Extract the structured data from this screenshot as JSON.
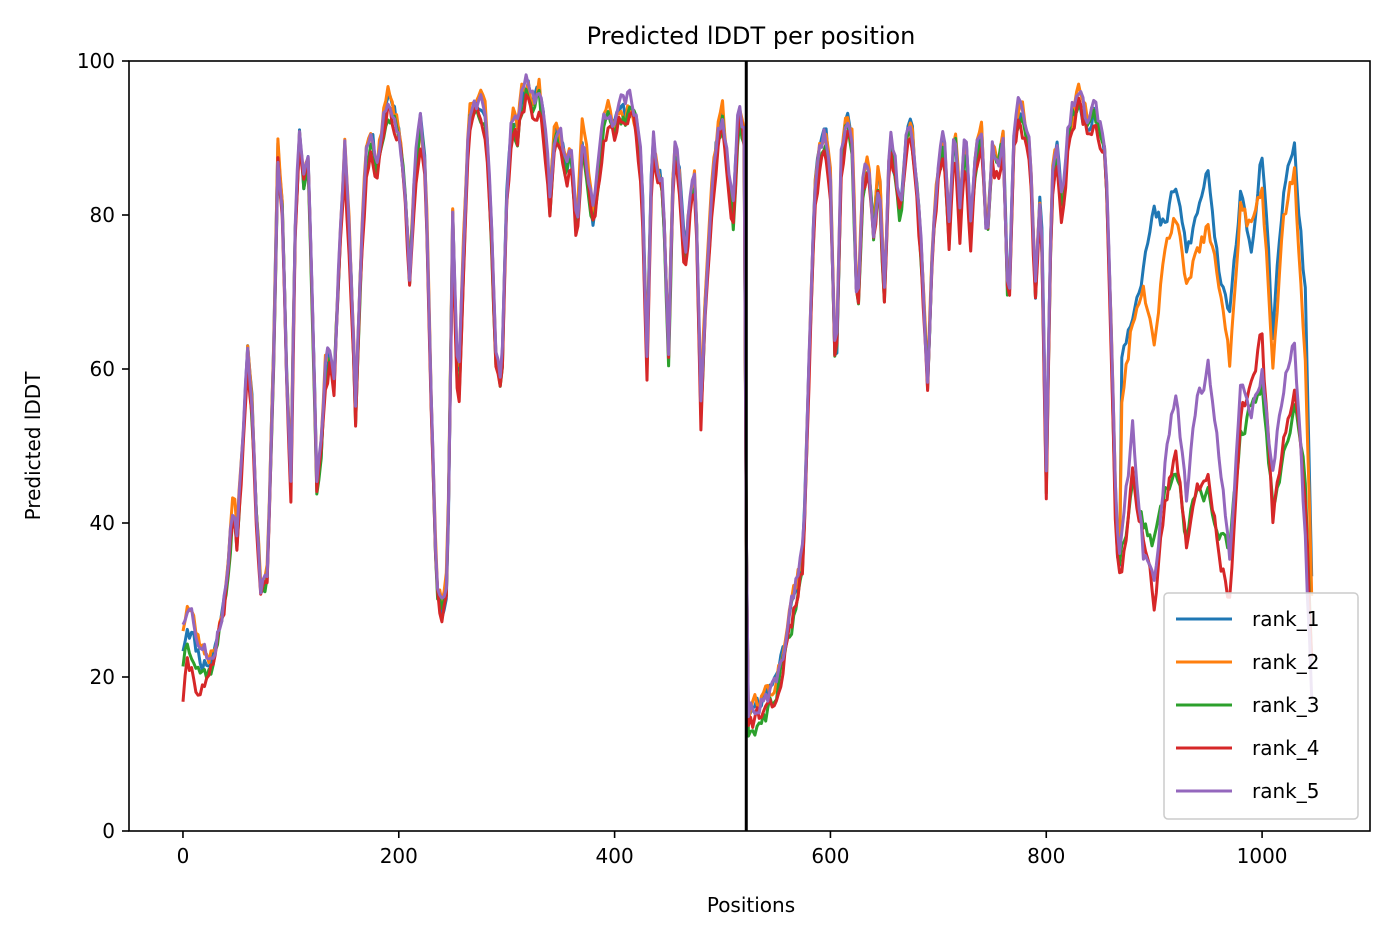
{
  "chart_data": {
    "type": "line",
    "title": "Predicted lDDT per position",
    "xlabel": "Positions",
    "ylabel": "Predicted lDDT",
    "xlim": [
      -50,
      1100
    ],
    "ylim": [
      0,
      100
    ],
    "xticks": [
      0,
      200,
      400,
      600,
      800,
      1000
    ],
    "yticks": [
      0,
      20,
      40,
      60,
      80,
      100
    ],
    "vline": 522,
    "grid": false,
    "legend_position": "lower-right",
    "colors": {
      "rank_1": "#1f77b4",
      "rank_2": "#ff7f0e",
      "rank_3": "#2ca02c",
      "rank_4": "#d62728",
      "rank_5": "#9467bd",
      "vline": "#000000"
    },
    "base": [
      [
        0,
        24
      ],
      [
        4,
        27
      ],
      [
        8,
        26
      ],
      [
        12,
        24
      ],
      [
        18,
        22
      ],
      [
        25,
        22
      ],
      [
        30,
        24
      ],
      [
        36,
        28
      ],
      [
        42,
        35
      ],
      [
        47,
        43
      ],
      [
        50,
        38
      ],
      [
        55,
        50
      ],
      [
        60,
        62
      ],
      [
        64,
        55
      ],
      [
        68,
        42
      ],
      [
        72,
        32
      ],
      [
        78,
        33
      ],
      [
        84,
        62
      ],
      [
        88,
        88
      ],
      [
        92,
        82
      ],
      [
        96,
        60
      ],
      [
        100,
        46
      ],
      [
        104,
        78
      ],
      [
        108,
        91
      ],
      [
        112,
        85
      ],
      [
        116,
        88
      ],
      [
        120,
        68
      ],
      [
        124,
        46
      ],
      [
        128,
        50
      ],
      [
        132,
        60
      ],
      [
        136,
        62
      ],
      [
        140,
        58
      ],
      [
        145,
        75
      ],
      [
        150,
        88
      ],
      [
        155,
        75
      ],
      [
        160,
        55
      ],
      [
        165,
        75
      ],
      [
        170,
        88
      ],
      [
        175,
        90
      ],
      [
        180,
        86
      ],
      [
        185,
        92
      ],
      [
        190,
        95
      ],
      [
        195,
        93
      ],
      [
        200,
        91
      ],
      [
        205,
        85
      ],
      [
        210,
        72
      ],
      [
        215,
        86
      ],
      [
        220,
        92
      ],
      [
        225,
        86
      ],
      [
        230,
        55
      ],
      [
        235,
        32
      ],
      [
        240,
        29
      ],
      [
        245,
        33
      ],
      [
        250,
        80
      ],
      [
        255,
        55
      ],
      [
        260,
        75
      ],
      [
        265,
        92
      ],
      [
        270,
        94
      ],
      [
        275,
        95
      ],
      [
        280,
        93
      ],
      [
        285,
        82
      ],
      [
        290,
        62
      ],
      [
        295,
        57
      ],
      [
        300,
        82
      ],
      [
        305,
        93
      ],
      [
        310,
        91
      ],
      [
        315,
        96
      ],
      [
        320,
        97
      ],
      [
        325,
        94
      ],
      [
        330,
        96
      ],
      [
        335,
        91
      ],
      [
        340,
        82
      ],
      [
        345,
        92
      ],
      [
        350,
        90
      ],
      [
        355,
        86
      ],
      [
        360,
        88
      ],
      [
        365,
        78
      ],
      [
        370,
        90
      ],
      [
        375,
        86
      ],
      [
        380,
        80
      ],
      [
        385,
        85
      ],
      [
        390,
        92
      ],
      [
        395,
        94
      ],
      [
        400,
        91
      ],
      [
        405,
        94
      ],
      [
        410,
        93
      ],
      [
        415,
        95
      ],
      [
        420,
        92
      ],
      [
        425,
        86
      ],
      [
        430,
        62
      ],
      [
        435,
        90
      ],
      [
        440,
        86
      ],
      [
        445,
        83
      ],
      [
        450,
        62
      ],
      [
        455,
        90
      ],
      [
        460,
        85
      ],
      [
        465,
        74
      ],
      [
        470,
        82
      ],
      [
        475,
        85
      ],
      [
        480,
        55
      ],
      [
        485,
        72
      ],
      [
        490,
        82
      ],
      [
        495,
        90
      ],
      [
        500,
        93
      ],
      [
        505,
        86
      ],
      [
        510,
        80
      ],
      [
        515,
        94
      ],
      [
        520,
        90
      ],
      [
        523,
        14
      ],
      [
        530,
        15
      ],
      [
        540,
        16
      ],
      [
        550,
        18
      ],
      [
        560,
        25
      ],
      [
        570,
        32
      ],
      [
        575,
        35
      ],
      [
        580,
        60
      ],
      [
        585,
        82
      ],
      [
        590,
        88
      ],
      [
        595,
        91
      ],
      [
        600,
        85
      ],
      [
        605,
        58
      ],
      [
        610,
        87
      ],
      [
        615,
        92
      ],
      [
        620,
        90
      ],
      [
        625,
        66
      ],
      [
        630,
        84
      ],
      [
        635,
        87
      ],
      [
        640,
        78
      ],
      [
        645,
        86
      ],
      [
        650,
        70
      ],
      [
        655,
        90
      ],
      [
        660,
        86
      ],
      [
        665,
        80
      ],
      [
        670,
        90
      ],
      [
        675,
        92
      ],
      [
        680,
        84
      ],
      [
        685,
        74
      ],
      [
        690,
        58
      ],
      [
        695,
        78
      ],
      [
        700,
        86
      ],
      [
        705,
        90
      ],
      [
        710,
        78
      ],
      [
        715,
        92
      ],
      [
        720,
        80
      ],
      [
        725,
        90
      ],
      [
        730,
        78
      ],
      [
        735,
        88
      ],
      [
        740,
        91
      ],
      [
        745,
        76
      ],
      [
        750,
        88
      ],
      [
        755,
        86
      ],
      [
        760,
        90
      ],
      [
        765,
        66
      ],
      [
        770,
        90
      ],
      [
        775,
        94
      ],
      [
        780,
        92
      ],
      [
        785,
        88
      ],
      [
        790,
        70
      ],
      [
        795,
        85
      ],
      [
        800,
        46
      ],
      [
        805,
        84
      ],
      [
        810,
        88
      ],
      [
        815,
        80
      ],
      [
        820,
        90
      ],
      [
        825,
        94
      ],
      [
        830,
        96
      ],
      [
        835,
        93
      ],
      [
        840,
        92
      ],
      [
        845,
        94
      ],
      [
        850,
        91
      ],
      [
        855,
        88
      ],
      [
        860,
        66
      ],
      [
        865,
        38
      ],
      [
        870,
        33
      ]
    ],
    "tail": {
      "rank_1": [
        [
          870,
          62
        ],
        [
          880,
          68
        ],
        [
          890,
          74
        ],
        [
          900,
          80
        ],
        [
          910,
          78
        ],
        [
          920,
          84
        ],
        [
          930,
          75
        ],
        [
          940,
          80
        ],
        [
          950,
          86
        ],
        [
          960,
          72
        ],
        [
          970,
          66
        ],
        [
          980,
          84
        ],
        [
          990,
          76
        ],
        [
          1000,
          88
        ],
        [
          1010,
          64
        ],
        [
          1020,
          84
        ],
        [
          1030,
          88
        ],
        [
          1040,
          70
        ],
        [
          1046,
          34
        ]
      ],
      "rank_2": [
        [
          870,
          55
        ],
        [
          880,
          66
        ],
        [
          890,
          72
        ],
        [
          900,
          64
        ],
        [
          910,
          75
        ],
        [
          920,
          80
        ],
        [
          930,
          70
        ],
        [
          940,
          76
        ],
        [
          950,
          78
        ],
        [
          960,
          70
        ],
        [
          970,
          60
        ],
        [
          980,
          82
        ],
        [
          990,
          78
        ],
        [
          1000,
          84
        ],
        [
          1010,
          62
        ],
        [
          1020,
          80
        ],
        [
          1030,
          86
        ],
        [
          1040,
          62
        ],
        [
          1046,
          30
        ]
      ],
      "rank_3": [
        [
          870,
          36
        ],
        [
          880,
          44
        ],
        [
          890,
          40
        ],
        [
          900,
          38
        ],
        [
          910,
          44
        ],
        [
          920,
          48
        ],
        [
          930,
          38
        ],
        [
          940,
          46
        ],
        [
          950,
          44
        ],
        [
          960,
          38
        ],
        [
          970,
          36
        ],
        [
          980,
          52
        ],
        [
          990,
          55
        ],
        [
          1000,
          58
        ],
        [
          1010,
          42
        ],
        [
          1020,
          50
        ],
        [
          1030,
          56
        ],
        [
          1040,
          46
        ],
        [
          1046,
          24
        ]
      ],
      "rank_4": [
        [
          870,
          34
        ],
        [
          880,
          46
        ],
        [
          890,
          38
        ],
        [
          900,
          30
        ],
        [
          910,
          42
        ],
        [
          920,
          50
        ],
        [
          930,
          36
        ],
        [
          940,
          44
        ],
        [
          950,
          46
        ],
        [
          960,
          36
        ],
        [
          970,
          30
        ],
        [
          980,
          54
        ],
        [
          990,
          58
        ],
        [
          1000,
          64
        ],
        [
          1010,
          40
        ],
        [
          1020,
          50
        ],
        [
          1030,
          58
        ],
        [
          1040,
          44
        ],
        [
          1046,
          22
        ]
      ],
      "rank_5": [
        [
          870,
          38
        ],
        [
          880,
          52
        ],
        [
          890,
          36
        ],
        [
          900,
          32
        ],
        [
          910,
          48
        ],
        [
          920,
          58
        ],
        [
          930,
          44
        ],
        [
          940,
          56
        ],
        [
          950,
          60
        ],
        [
          960,
          48
        ],
        [
          970,
          36
        ],
        [
          980,
          58
        ],
        [
          990,
          55
        ],
        [
          1000,
          60
        ],
        [
          1010,
          46
        ],
        [
          1020,
          58
        ],
        [
          1030,
          64
        ],
        [
          1040,
          38
        ],
        [
          1046,
          18
        ]
      ]
    },
    "series": [
      {
        "name": "rank_1",
        "seed": 11,
        "offset": 0.0
      },
      {
        "name": "rank_2",
        "seed": 23,
        "offset": 0.6
      },
      {
        "name": "rank_3",
        "seed": 37,
        "offset": -1.0
      },
      {
        "name": "rank_4",
        "seed": 41,
        "offset": -1.6
      },
      {
        "name": "rank_5",
        "seed": 53,
        "offset": 0.4
      }
    ],
    "start_offsets": {
      "rank_1": 0,
      "rank_2": 2,
      "rank_3": -1,
      "rank_4": -5,
      "rank_5": 3
    }
  }
}
